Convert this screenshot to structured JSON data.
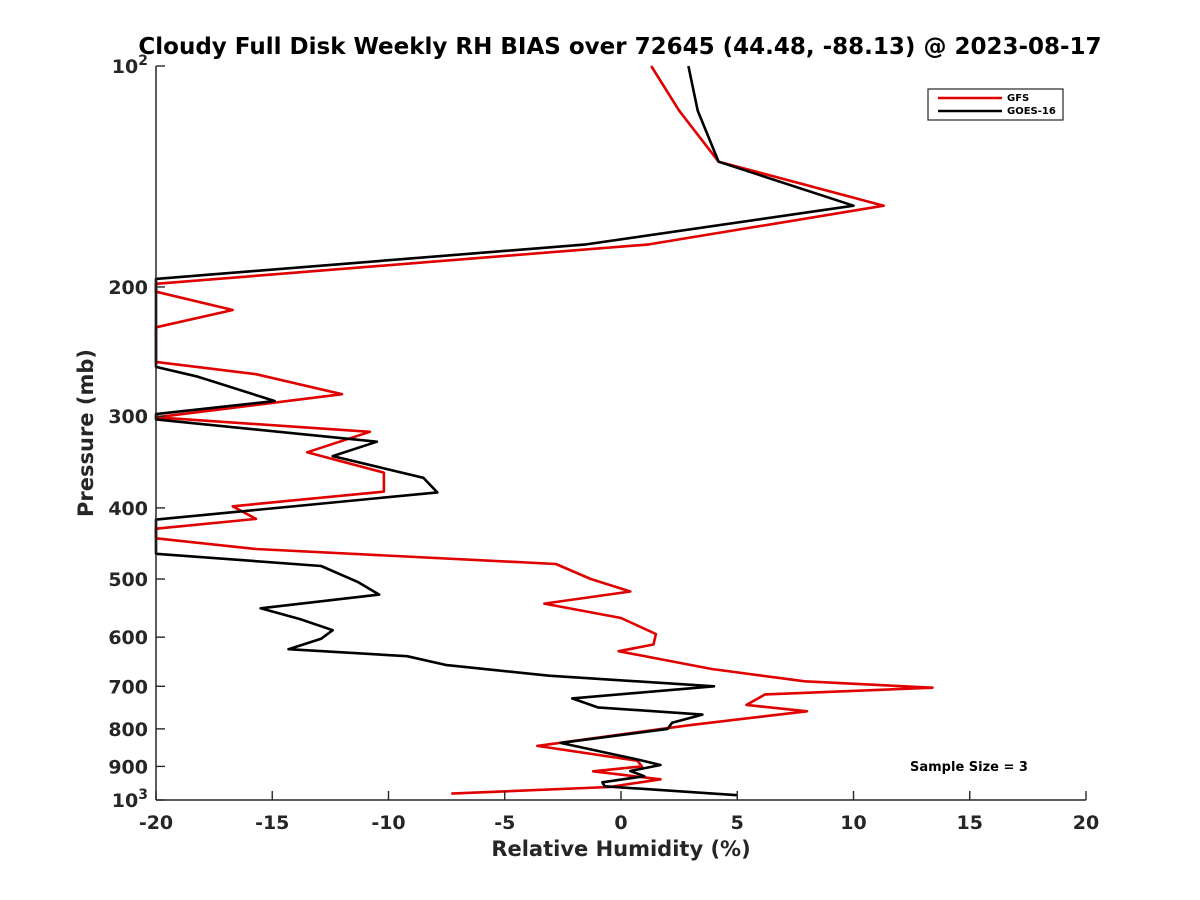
{
  "chart_data": {
    "type": "line",
    "title": "Cloudy Full Disk Weekly RH BIAS over 72645 (44.48, -88.13) @ 2023-08-17",
    "xlabel": "Relative Humidity (%)",
    "ylabel": "Pressure (mb)",
    "xlim": [
      -20,
      20
    ],
    "ylim": [
      100,
      1000
    ],
    "y_scale": "log",
    "y_reversed": true,
    "grid": false,
    "x_ticks": [
      -20,
      -15,
      -10,
      -5,
      0,
      5,
      10,
      15,
      20
    ],
    "x_tick_labels": [
      "-20",
      "-15",
      "-10",
      "-5",
      "0",
      "5",
      "10",
      "15",
      "20"
    ],
    "y_ticks": [
      200,
      300,
      400,
      500,
      600,
      700,
      800,
      900
    ],
    "y_tick_labels": [
      "200",
      "300",
      "400",
      "500",
      "600",
      "700",
      "800",
      "900"
    ],
    "y_end_labels": [
      {
        "value": 100,
        "base": "10",
        "exp": "2"
      },
      {
        "value": 1000,
        "base": "10",
        "exp": "3"
      }
    ],
    "legend_position": "top-right",
    "annotation": "Sample Size = 3",
    "series": [
      {
        "name": "GFS",
        "color": "#e00000",
        "points": [
          [
            1.3,
            100
          ],
          [
            2.5,
            115
          ],
          [
            4.2,
            135
          ],
          [
            11.3,
            155
          ],
          [
            1.2,
            175
          ],
          [
            -20,
            198
          ],
          [
            -20,
            203
          ],
          [
            -16.7,
            215
          ],
          [
            -20,
            227
          ],
          [
            -20,
            253
          ],
          [
            -15.7,
            263
          ],
          [
            -12.0,
            280
          ],
          [
            -20,
            301
          ],
          [
            -10.8,
            315
          ],
          [
            -13.5,
            336
          ],
          [
            -10.2,
            358
          ],
          [
            -10.2,
            380
          ],
          [
            -16.7,
            398
          ],
          [
            -15.7,
            414
          ],
          [
            -20,
            427
          ],
          [
            -20,
            440
          ],
          [
            -15.7,
            455
          ],
          [
            -2.8,
            477
          ],
          [
            -1.3,
            500
          ],
          [
            0.4,
            520
          ],
          [
            -3.3,
            540
          ],
          [
            0,
            565
          ],
          [
            1.5,
            594
          ],
          [
            1.4,
            614
          ],
          [
            -0.1,
            627
          ],
          [
            3.9,
            663
          ],
          [
            7.9,
            689
          ],
          [
            13.4,
            703
          ],
          [
            6.2,
            718
          ],
          [
            5.4,
            742
          ],
          [
            8.0,
            757
          ],
          [
            2.9,
            791
          ],
          [
            -3.6,
            844
          ],
          [
            0.7,
            884
          ],
          [
            0.9,
            900
          ],
          [
            -1.2,
            914
          ],
          [
            1.7,
            937
          ],
          [
            -0.5,
            960
          ],
          [
            -7.3,
            980
          ]
        ]
      },
      {
        "name": "GOES-16",
        "color": "#000000",
        "points": [
          [
            2.9,
            100
          ],
          [
            3.3,
            115
          ],
          [
            4.2,
            135
          ],
          [
            10.0,
            155
          ],
          [
            -1.5,
            175
          ],
          [
            -20,
            195
          ],
          [
            -20,
            257
          ],
          [
            -18.2,
            265
          ],
          [
            -14.9,
            286
          ],
          [
            -20,
            298
          ],
          [
            -20,
            303
          ],
          [
            -10.5,
            325
          ],
          [
            -12.4,
            340
          ],
          [
            -8.5,
            364
          ],
          [
            -7.9,
            381
          ],
          [
            -20,
            415
          ],
          [
            -20,
            462
          ],
          [
            -12.9,
            480
          ],
          [
            -11.3,
            505
          ],
          [
            -10.4,
            525
          ],
          [
            -15.5,
            548
          ],
          [
            -13.8,
            567
          ],
          [
            -12.4,
            587
          ],
          [
            -12.9,
            603
          ],
          [
            -14.3,
            623
          ],
          [
            -9.2,
            637
          ],
          [
            -7.5,
            655
          ],
          [
            -3.1,
            677
          ],
          [
            4.0,
            700
          ],
          [
            -2.1,
            727
          ],
          [
            -1.0,
            748
          ],
          [
            3.5,
            765
          ],
          [
            2.2,
            785
          ],
          [
            2.0,
            800
          ],
          [
            -2.6,
            836
          ],
          [
            0.8,
            882
          ],
          [
            1.7,
            896
          ],
          [
            0.4,
            913
          ],
          [
            1.0,
            928
          ],
          [
            -0.8,
            946
          ],
          [
            -0.7,
            958
          ],
          [
            5.0,
            985
          ]
        ]
      }
    ]
  }
}
